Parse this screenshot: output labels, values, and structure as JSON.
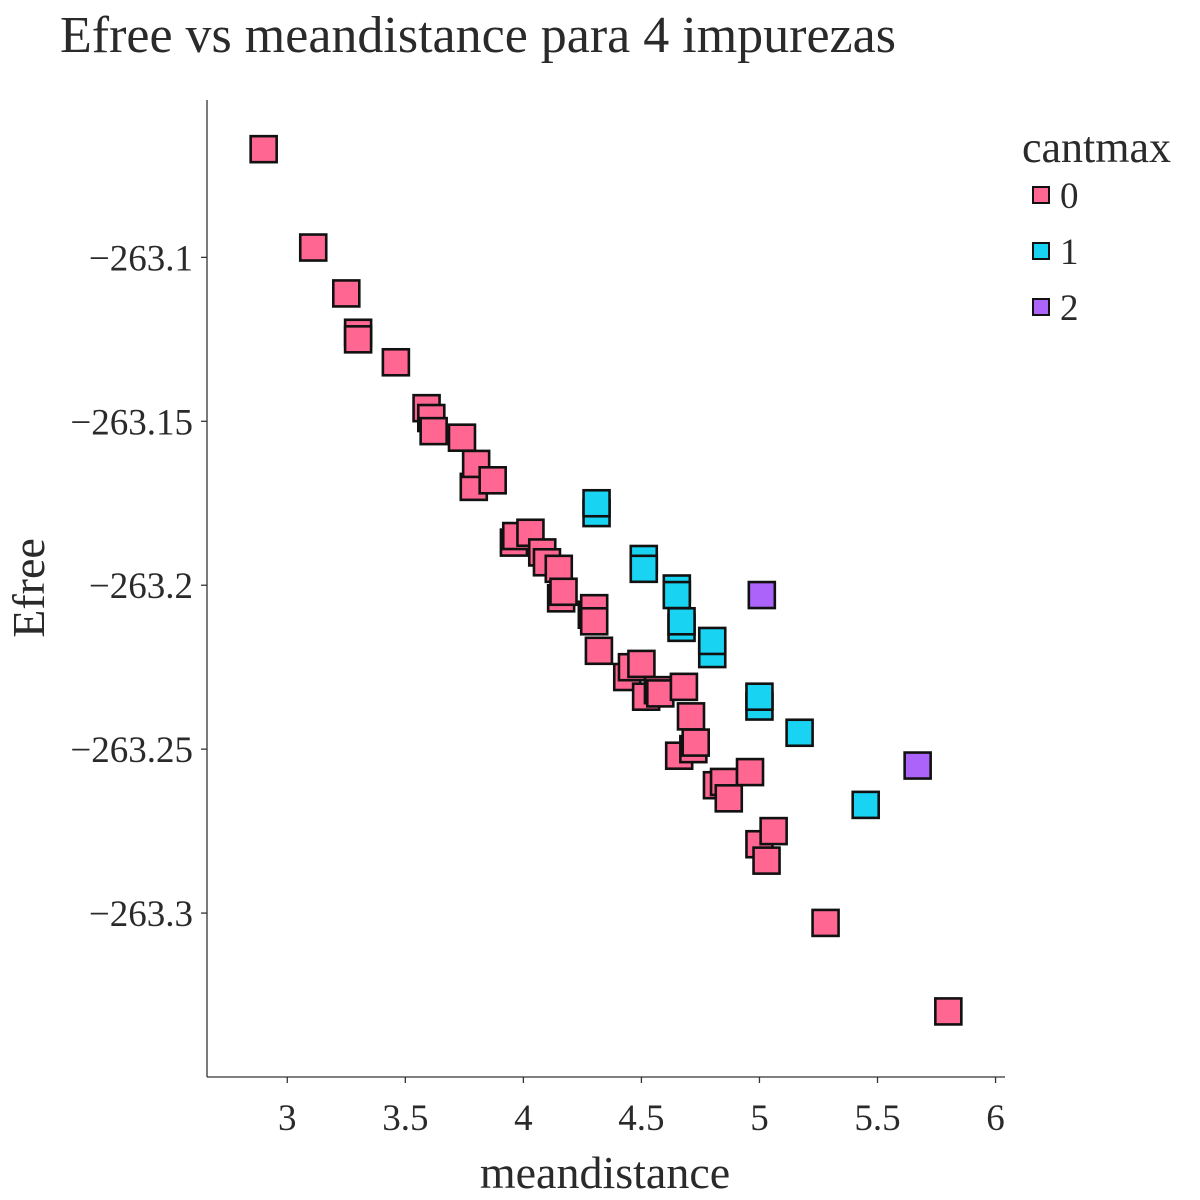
{
  "chart_data": {
    "type": "scatter",
    "title": "Efree vs meandistance para 4 impurezas",
    "xlabel": "meandistance",
    "ylabel": "Efree",
    "xlim": [
      2.66,
      6.04
    ],
    "ylim": [
      -263.35,
      -263.052
    ],
    "x_ticks": [
      3,
      3.5,
      4,
      4.5,
      5,
      5.5,
      6
    ],
    "x_tick_labels": [
      "3",
      "3.5",
      "4",
      "4.5",
      "5",
      "5.5",
      "6"
    ],
    "y_ticks": [
      -263.1,
      -263.15,
      -263.2,
      -263.25,
      -263.3
    ],
    "y_tick_labels": [
      "−263.1",
      "−263.15",
      "−263.2",
      "−263.25",
      "−263.3"
    ],
    "grid": false,
    "marker": "square",
    "legend": {
      "title": "cantmax",
      "placement": "top-right"
    },
    "series": [
      {
        "name": "0",
        "color": "#ff6692",
        "x": [
          2.9,
          3.11,
          3.25,
          3.3,
          3.3,
          3.46,
          3.59,
          3.61,
          3.62,
          3.74,
          3.79,
          3.8,
          3.87,
          3.96,
          3.97,
          4.03,
          4.08,
          4.1,
          4.15,
          4.16,
          4.17,
          4.29,
          4.3,
          4.3,
          4.32,
          4.44,
          4.46,
          4.5,
          4.52,
          4.57,
          4.58,
          4.66,
          4.68,
          4.71,
          4.72,
          4.73,
          4.82,
          4.85,
          4.87,
          4.96,
          5.0,
          5.03,
          5.06,
          5.28,
          5.8
        ],
        "y": [
          -263.067,
          -263.097,
          -263.111,
          -263.123,
          -263.125,
          -263.132,
          -263.146,
          -263.149,
          -263.153,
          -263.155,
          -263.17,
          -263.163,
          -263.168,
          -263.187,
          -263.185,
          -263.184,
          -263.19,
          -263.193,
          -263.195,
          -263.204,
          -263.202,
          -263.209,
          -263.207,
          -263.211,
          -263.22,
          -263.228,
          -263.225,
          -263.224,
          -263.234,
          -263.232,
          -263.233,
          -263.252,
          -263.231,
          -263.24,
          -263.25,
          -263.248,
          -263.261,
          -263.26,
          -263.265,
          -263.257,
          -263.279,
          -263.284,
          -263.275,
          -263.303,
          -263.33
        ]
      },
      {
        "name": "1",
        "color": "#19d3f3",
        "x": [
          4.31,
          4.31,
          4.51,
          4.51,
          4.65,
          4.65,
          4.67,
          4.67,
          4.8,
          4.8,
          5.0,
          5.0,
          5.17,
          5.45
        ],
        "y": [
          -263.178,
          -263.175,
          -263.192,
          -263.195,
          -263.201,
          -263.203,
          -263.213,
          -263.211,
          -263.221,
          -263.217,
          -263.237,
          -263.234,
          -263.245,
          -263.267
        ]
      },
      {
        "name": "2",
        "color": "#ab63fa",
        "x": [
          5.01,
          5.67
        ],
        "y": [
          -263.203,
          -263.255
        ]
      }
    ]
  }
}
